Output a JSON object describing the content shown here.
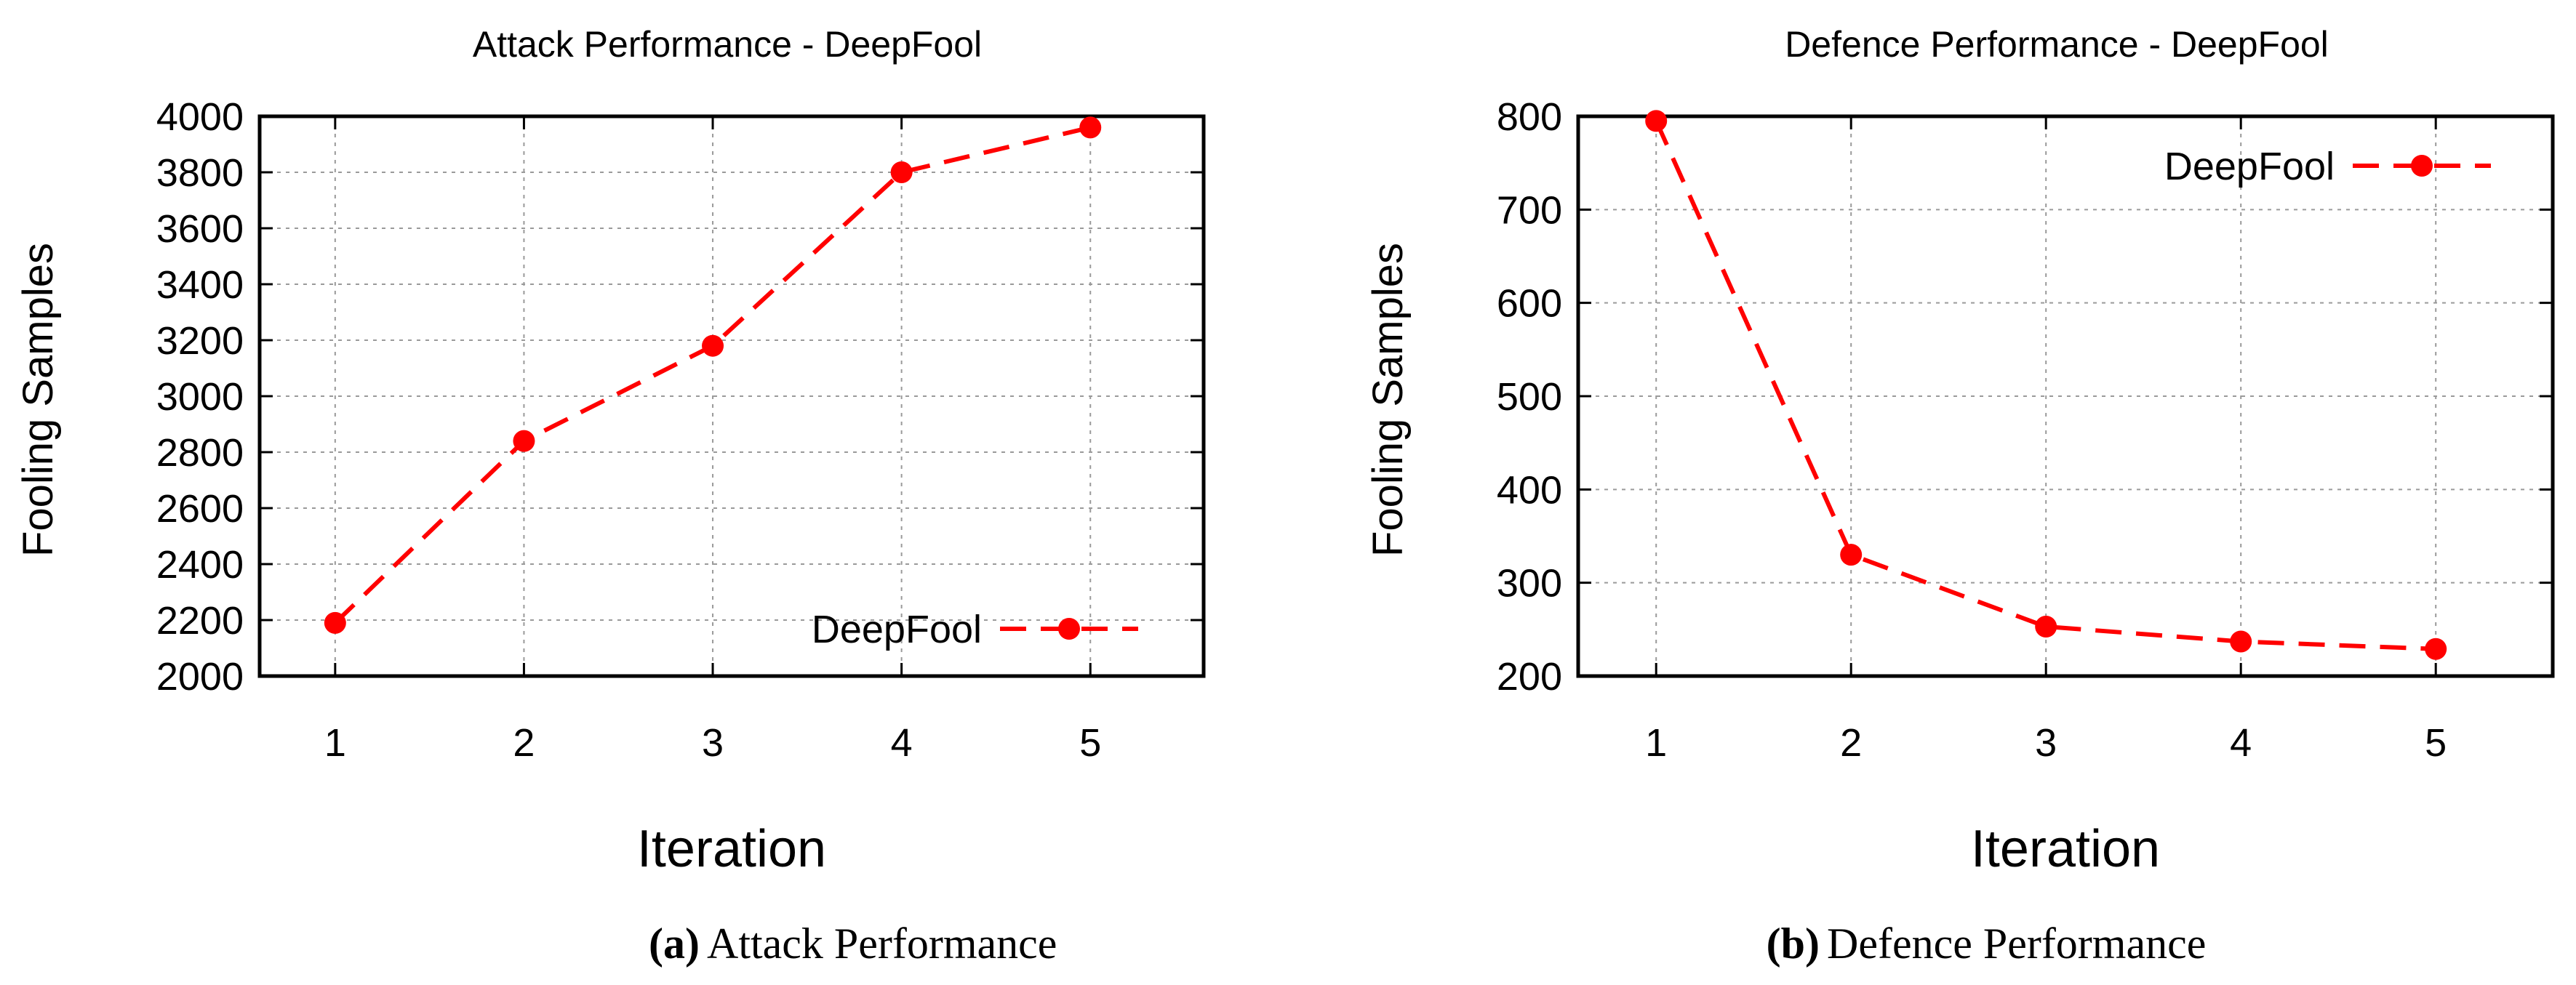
{
  "chart_data": [
    {
      "type": "line",
      "title": "Attack Performance - DeepFool",
      "xlabel": "Iteration",
      "ylabel": "Fooling Samples",
      "x": [
        1,
        2,
        3,
        4,
        5
      ],
      "xlim": [
        0.6,
        5.6
      ],
      "ylim": [
        2000,
        4000
      ],
      "yticks": [
        2000,
        2200,
        2400,
        2600,
        2800,
        3000,
        3200,
        3400,
        3600,
        3800,
        4000
      ],
      "grid": true,
      "legend_position": "bottom-right",
      "series": [
        {
          "name": "DeepFool",
          "color": "#ff0000",
          "values": [
            2190,
            2840,
            3180,
            3800,
            3960
          ]
        }
      ],
      "caption_letter": "(a)",
      "caption_text": "Attack Performance"
    },
    {
      "type": "line",
      "title": "Defence Performance - DeepFool",
      "xlabel": "Iteration",
      "ylabel": "Fooling Samples",
      "x": [
        1,
        2,
        3,
        4,
        5
      ],
      "xlim": [
        0.6,
        5.6
      ],
      "ylim": [
        200,
        800
      ],
      "yticks": [
        200,
        300,
        400,
        500,
        600,
        700,
        800
      ],
      "grid": true,
      "legend_position": "top-right",
      "series": [
        {
          "name": "DeepFool",
          "color": "#ff0000",
          "values": [
            795,
            330,
            253,
            237,
            229
          ]
        }
      ],
      "caption_letter": "(b)",
      "caption_text": "Defence Performance"
    }
  ]
}
